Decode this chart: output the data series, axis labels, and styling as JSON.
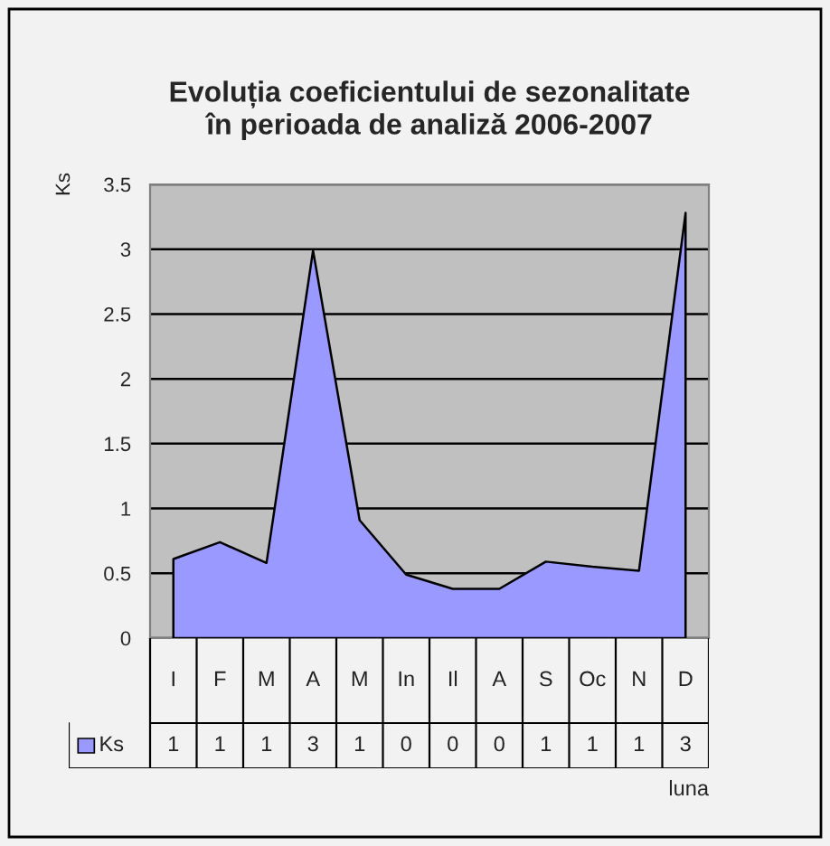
{
  "chart_data": {
    "type": "area",
    "title": "Evoluția coeficientului de sezonalitate\nîn perioada de analiză 2006-2007",
    "xlabel": "luna",
    "ylabel": "Ks",
    "categories": [
      "I",
      "F",
      "M",
      "A",
      "M",
      "In",
      "Il",
      "A",
      "S",
      "Oc",
      "N",
      "D"
    ],
    "series": [
      {
        "name": "Ks",
        "color": "#9999ff",
        "values": [
          0.61,
          0.74,
          0.58,
          2.99,
          0.91,
          0.49,
          0.38,
          0.38,
          0.59,
          0.55,
          0.52,
          3.28
        ],
        "value_labels": [
          "1",
          "1",
          "1",
          "3",
          "1",
          "0",
          "0",
          "0",
          "1",
          "1",
          "1",
          "3"
        ]
      }
    ],
    "ylim": [
      0,
      3.5
    ],
    "yticks": [
      0,
      0.5,
      1,
      1.5,
      2,
      2.5,
      3,
      3.5
    ],
    "grid": "y",
    "legend": "bottom left"
  }
}
